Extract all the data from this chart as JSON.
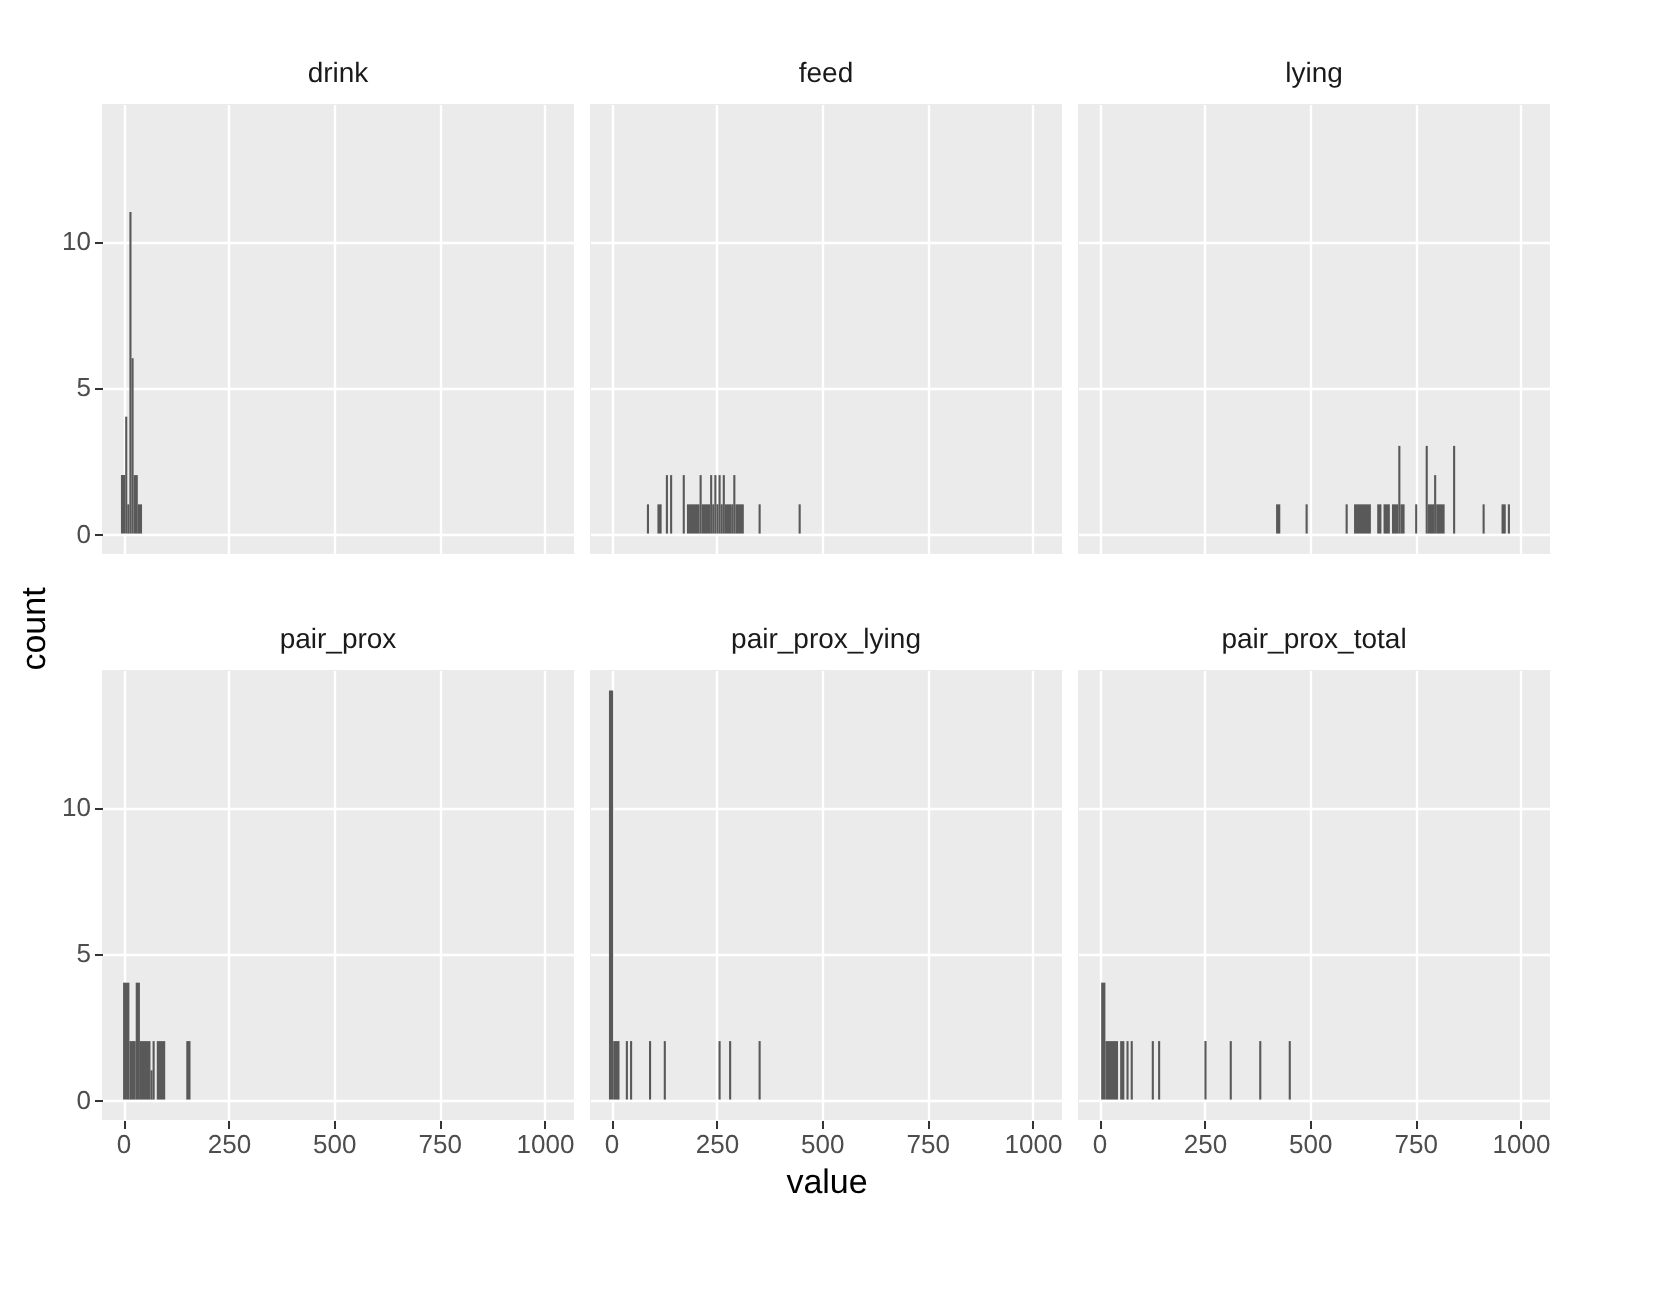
{
  "chart_data": [
    {
      "type": "histogram",
      "title": "drink",
      "ylabel": "count",
      "bins": [
        -5,
        5,
        10,
        15,
        20,
        25,
        35,
        45
      ],
      "values": [
        2,
        4,
        1,
        11,
        6,
        2,
        1
      ],
      "color": "#595959",
      "xlim": [
        -50,
        1070
      ],
      "ylim": [
        -0.7,
        14.7
      ],
      "xticks": [
        0,
        250,
        500,
        750,
        1000
      ],
      "yticks": [
        0,
        5,
        10
      ],
      "grid": true,
      "tick_labels": "y"
    },
    {
      "type": "histogram",
      "title": "feed",
      "bins": [
        85,
        90,
        110,
        120,
        130,
        135,
        140,
        145,
        170,
        175,
        180,
        210,
        215,
        235,
        240,
        245,
        250,
        255,
        260,
        265,
        270,
        285,
        290,
        295,
        315,
        350,
        355,
        445,
        450
      ],
      "values": [
        1,
        0,
        1,
        0,
        2,
        0,
        2,
        0,
        2,
        0,
        1,
        2,
        1,
        2,
        1,
        2,
        1,
        2,
        1,
        2,
        1,
        1,
        2,
        1,
        0,
        1,
        0,
        1
      ],
      "color": "#595959",
      "xlim": [
        -50,
        1070
      ],
      "ylim": [
        -0.7,
        14.7
      ],
      "xticks": [
        0,
        250,
        500,
        750,
        1000
      ],
      "yticks": [
        0,
        5,
        10
      ],
      "grid": true,
      "tick_labels": false
    },
    {
      "type": "histogram",
      "title": "lying",
      "bins": [
        420,
        430,
        490,
        495,
        585,
        590,
        605,
        645,
        660,
        670,
        675,
        690,
        695,
        710,
        715,
        725,
        750,
        755,
        775,
        780,
        795,
        800,
        820,
        840,
        845,
        910,
        915,
        955,
        965,
        970,
        975
      ],
      "values": [
        1,
        0,
        1,
        0,
        1,
        0,
        1,
        0,
        1,
        0,
        1,
        0,
        1,
        3,
        1,
        0,
        1,
        0,
        3,
        1,
        2,
        1,
        0,
        3,
        0,
        1,
        0,
        1,
        0,
        1
      ],
      "color": "#595959",
      "xlim": [
        -50,
        1070
      ],
      "ylim": [
        -0.7,
        14.7
      ],
      "xticks": [
        0,
        250,
        500,
        750,
        1000
      ],
      "yticks": [
        0,
        5,
        10
      ],
      "grid": true,
      "tick_labels": false
    },
    {
      "type": "histogram",
      "title": "pair_prox",
      "bins": [
        0,
        15,
        30,
        40,
        65,
        70,
        75,
        80,
        100,
        150,
        160
      ],
      "values": [
        4,
        2,
        4,
        2,
        1,
        2,
        0,
        2,
        0,
        2
      ],
      "color": "#595959",
      "xlim": [
        -50,
        1070
      ],
      "ylim": [
        -0.7,
        14.7
      ],
      "xticks": [
        0,
        250,
        500,
        750,
        1000
      ],
      "yticks": [
        0,
        5,
        10
      ],
      "grid": true
    },
    {
      "type": "histogram",
      "title": "pair_prox_lying",
      "xlabel": "value",
      "bins": [
        -5,
        5,
        20,
        35,
        40,
        45,
        50,
        90,
        95,
        125,
        130,
        255,
        260,
        280,
        285,
        350,
        355
      ],
      "values": [
        14,
        2,
        0,
        2,
        0,
        2,
        0,
        2,
        0,
        2,
        0,
        2,
        0,
        2,
        0,
        2
      ],
      "color": "#595959",
      "xlim": [
        -50,
        1070
      ],
      "ylim": [
        -0.7,
        14.7
      ],
      "xticks": [
        0,
        250,
        500,
        750,
        1000
      ],
      "yticks": [
        0,
        5,
        10
      ],
      "grid": true,
      "tick_labels": "x"
    },
    {
      "type": "histogram",
      "title": "pair_prox_total",
      "bins": [
        5,
        15,
        45,
        50,
        60,
        65,
        70,
        75,
        80,
        125,
        130,
        140,
        145,
        250,
        255,
        310,
        315,
        380,
        385,
        450,
        455
      ],
      "values": [
        4,
        2,
        0,
        2,
        0,
        2,
        0,
        2,
        0,
        2,
        0,
        2,
        0,
        2,
        0,
        2,
        0,
        2,
        0,
        2
      ],
      "color": "#595959",
      "xlim": [
        -50,
        1070
      ],
      "ylim": [
        -0.7,
        14.7
      ],
      "xticks": [
        0,
        250,
        500,
        750,
        1000
      ],
      "yticks": [
        0,
        5,
        10
      ],
      "grid": true,
      "tick_labels": "x"
    }
  ]
}
